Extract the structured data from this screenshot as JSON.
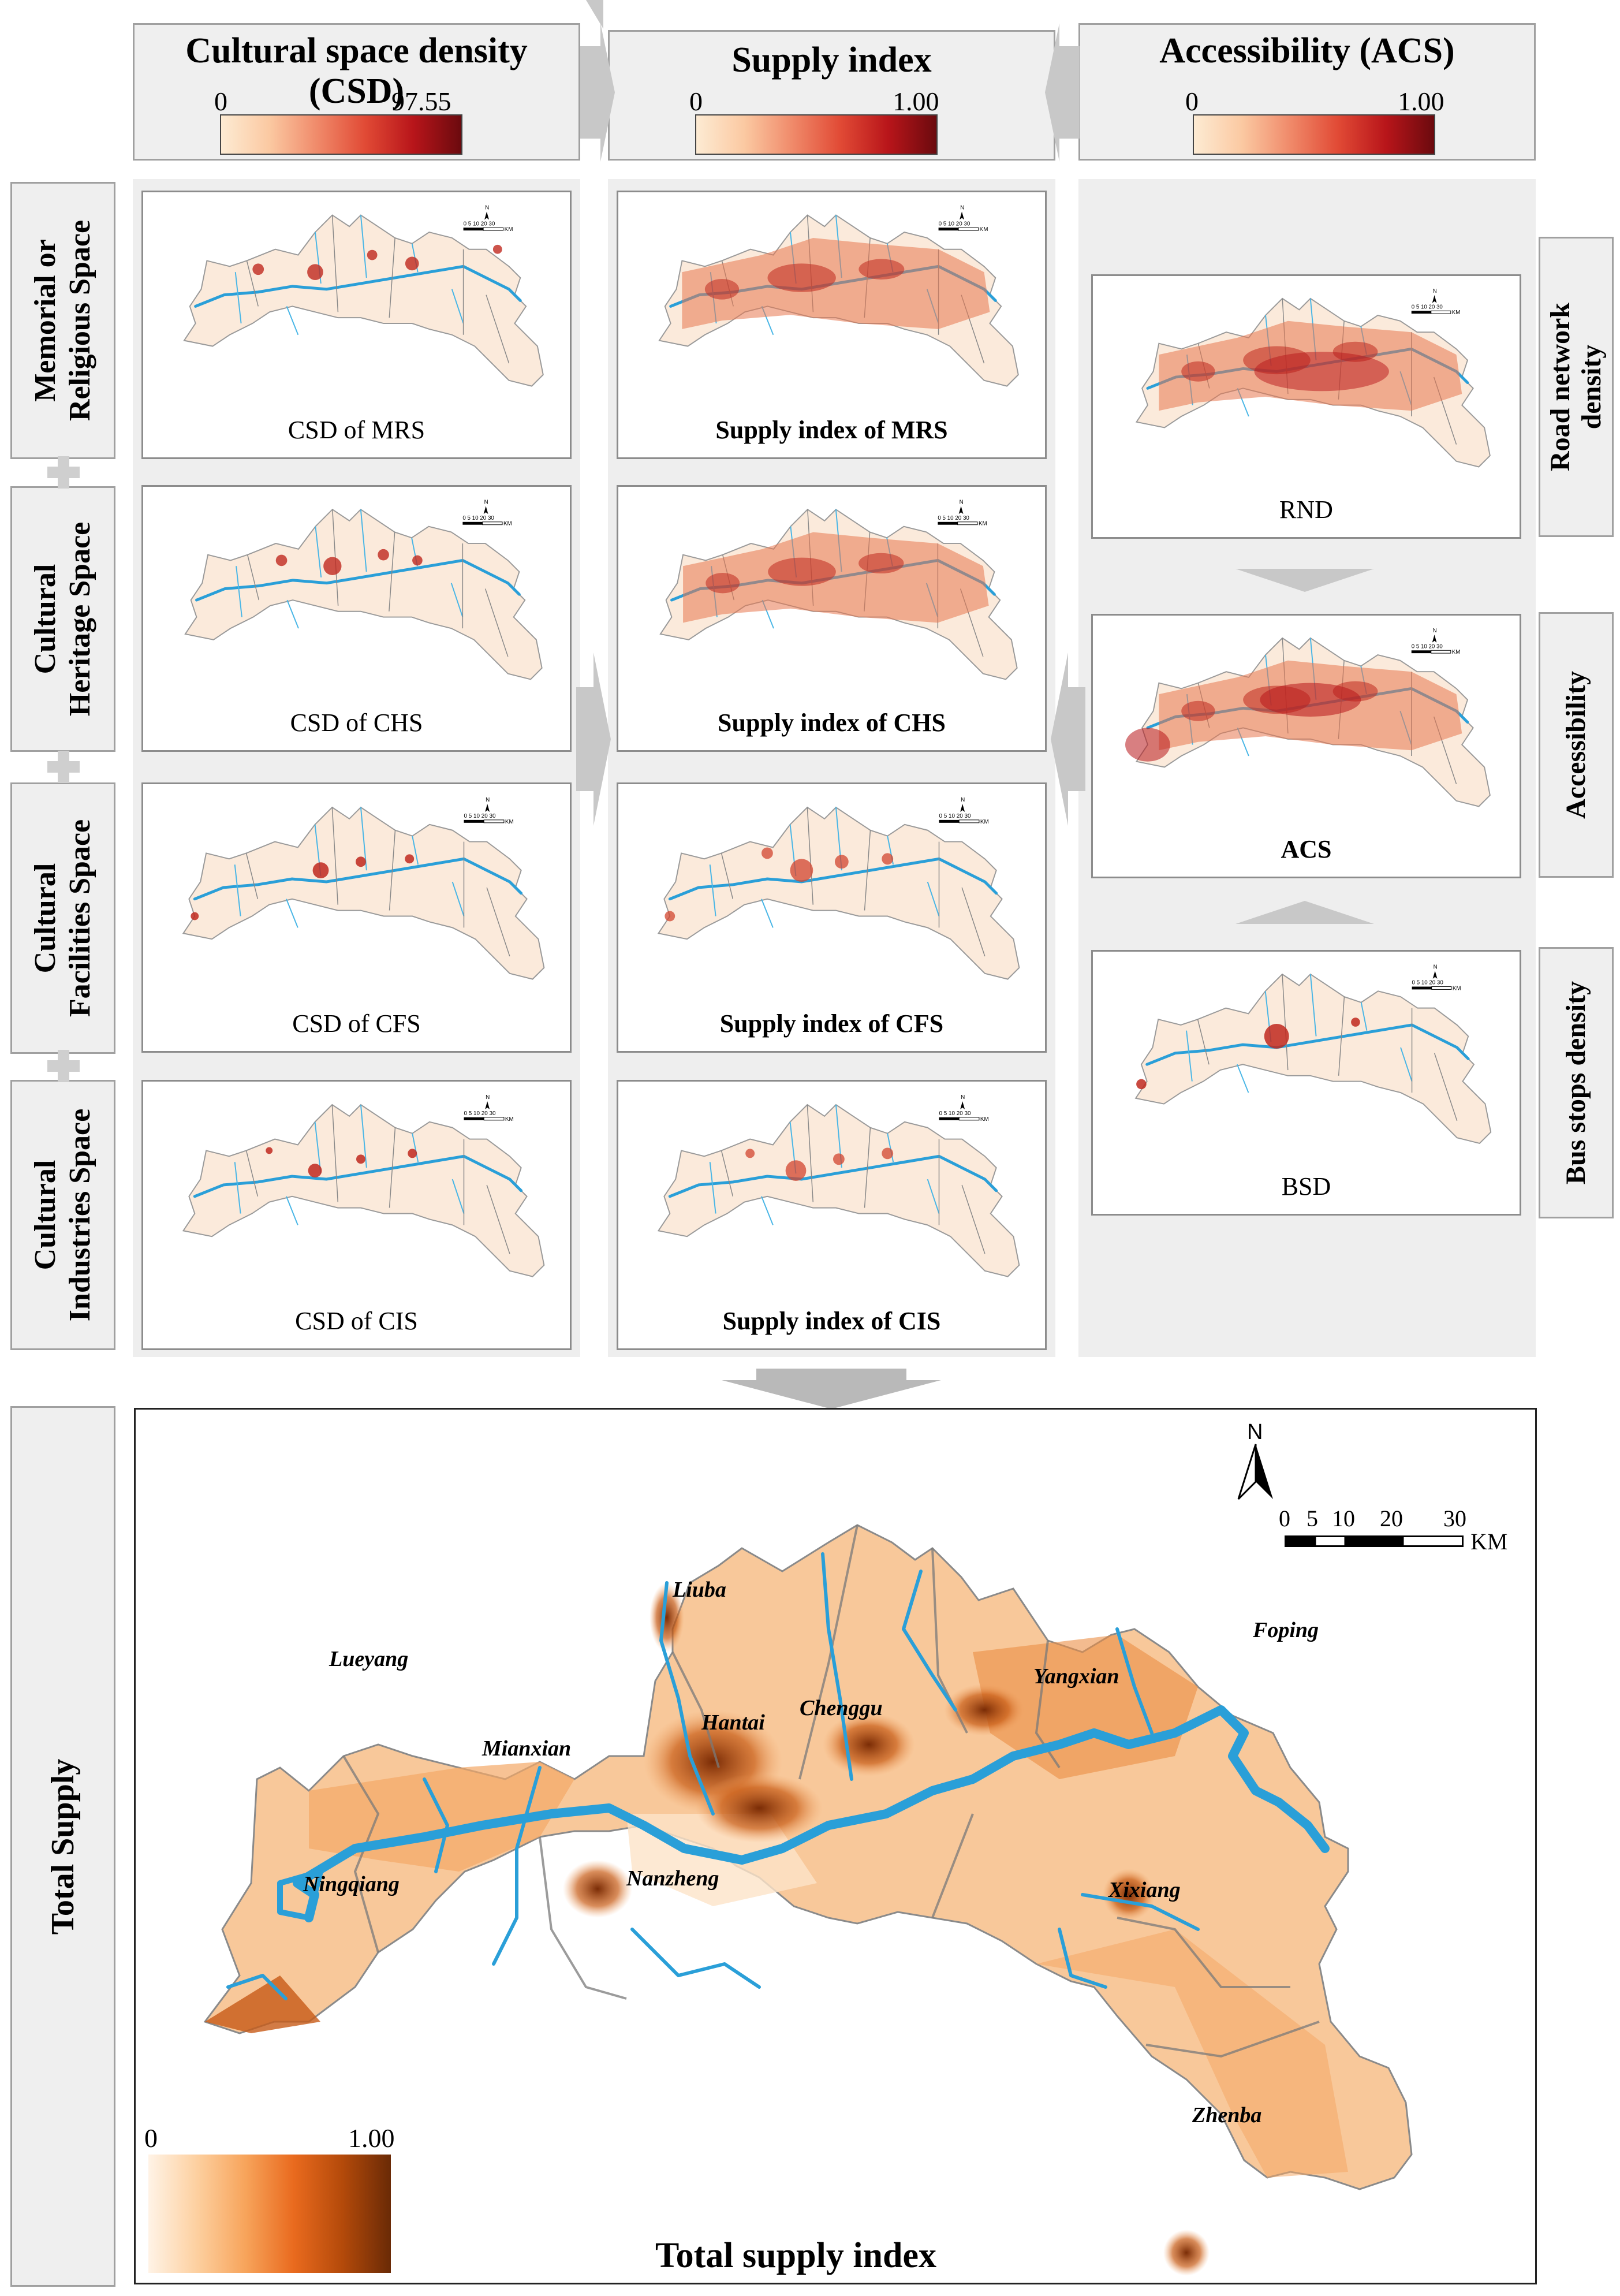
{
  "headers": {
    "csd": {
      "title": "Cultural space density (CSD)",
      "min": "0",
      "max": "97.55"
    },
    "supply": {
      "title": "Supply index",
      "min": "0",
      "max": "1.00"
    },
    "acs": {
      "title": "Accessibility (ACS)",
      "min": "0",
      "max": "1.00"
    }
  },
  "row_labels": [
    {
      "line1": "Memorial or",
      "line2": "Religious Space"
    },
    {
      "line1": "Cultural",
      "line2": "Heritage Space"
    },
    {
      "line1": "Cultural",
      "line2": "Facilities Space"
    },
    {
      "line1": "Cultural",
      "line2": "Industries Space"
    }
  ],
  "csd_maps": [
    "CSD of MRS",
    "CSD of CHS",
    "CSD of CFS",
    "CSD of CIS"
  ],
  "supply_maps": [
    "Supply index of MRS",
    "Supply index of CHS",
    "Supply index of CFS",
    "Supply index of CIS"
  ],
  "acs_maps": [
    "RND",
    "ACS",
    "BSD"
  ],
  "right_labels": [
    {
      "line1": "Road network",
      "line2": "density"
    },
    {
      "line1": "Accessibility",
      "line2": ""
    },
    {
      "line1": "Bus stops density",
      "line2": ""
    }
  ],
  "mini_scale": {
    "ticks": "0 5 10   20   30",
    "unit": "KM",
    "north": "N"
  },
  "total": {
    "side_label": "Total Supply",
    "title": "Total supply index",
    "legend_min": "0",
    "legend_max": "1.00",
    "north": "N",
    "scale_ticks": [
      "0",
      "5",
      "10",
      "20",
      "30"
    ],
    "scale_unit": "KM",
    "cities": [
      "Liuba",
      "Lueyang",
      "Foping",
      "Yangxian",
      "Chenggu",
      "Hantai",
      "Mianxian",
      "Ningqiang",
      "Nanzheng",
      "Xixiang",
      "Zhenba"
    ]
  },
  "colors": {
    "river": "#2a9fd8",
    "red_high": "#b8151a",
    "orange_high": "#b44a0a"
  }
}
